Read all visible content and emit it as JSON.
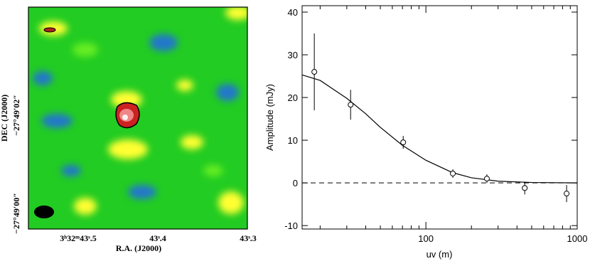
{
  "chart_data": [
    {
      "type": "image",
      "xlabel": "R.A. (J2000)",
      "ylabel": "DEC (J2000)",
      "xtick_labels": [
        "3ʰ32ᵐ43ˢ.5",
        "43ˢ.4",
        "43ˢ.3"
      ],
      "ytick_labels": [
        "−27°49′02″",
        "−27°49′00″"
      ]
    },
    {
      "type": "scatter",
      "xlabel": "uv (m)",
      "ylabel": "Amplitude (mJy)",
      "xscale": "log",
      "xlim": [
        15.2,
        1000
      ],
      "ylim": [
        -10.8,
        41.5
      ],
      "xticks": [
        100,
        1000
      ],
      "yticks": [
        -10,
        0,
        10,
        20,
        30,
        40
      ],
      "x": [
        18.3,
        31.8,
        70.8,
        150.7,
        253,
        450,
        851
      ],
      "values": [
        26,
        18.3,
        9.5,
        2.2,
        1,
        -1.2,
        -2.5
      ],
      "errors": [
        9,
        3.5,
        1.5,
        1,
        1,
        1.5,
        2
      ],
      "fit": {
        "x": [
          15.2,
          20,
          30,
          40,
          50,
          70,
          100,
          150,
          200,
          300,
          500,
          1000
        ],
        "values": [
          25.3,
          24,
          19.8,
          16.2,
          13,
          8.8,
          5.3,
          2.4,
          1.2,
          0.4,
          0.1,
          0
        ]
      },
      "reference_line": 0,
      "color": "#000000"
    }
  ]
}
